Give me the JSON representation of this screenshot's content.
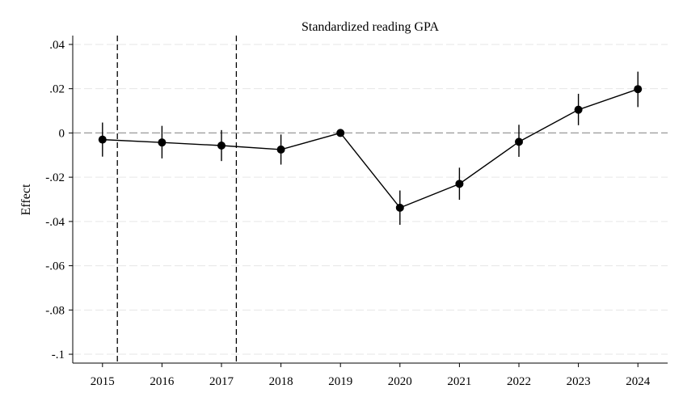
{
  "chart_data": {
    "type": "line",
    "title": "Standardized reading GPA",
    "xlabel": "",
    "ylabel": "Effect",
    "x": [
      2015,
      2016,
      2017,
      2018,
      2019,
      2020,
      2021,
      2022,
      2023,
      2024
    ],
    "x_tick_labels": [
      "2015",
      "2016",
      "2017",
      "2018",
      "2019",
      "2020",
      "2021",
      "2022",
      "2023",
      "2024"
    ],
    "y_ticks": [
      0.04,
      0.02,
      0,
      -0.02,
      -0.04,
      -0.06,
      -0.08,
      -0.1
    ],
    "y_tick_labels": [
      ".04",
      ".02",
      "0",
      "-.02",
      "-.04",
      "-.06",
      "-.08",
      "-.1"
    ],
    "xlim": [
      2014.5,
      2024.5
    ],
    "ylim": [
      -0.104,
      0.044
    ],
    "series": [
      {
        "values": [
          -0.003,
          -0.0043,
          -0.0057,
          -0.0075,
          0,
          -0.0338,
          -0.023,
          -0.004,
          0.0105,
          0.0198
        ],
        "ci_low": [
          -0.0107,
          -0.0115,
          -0.0127,
          -0.0143,
          0,
          -0.0415,
          -0.0302,
          -0.0108,
          0.0035,
          0.0117
        ],
        "ci_high": [
          0.0047,
          0.0032,
          0.0013,
          -0.0007,
          0,
          -0.026,
          -0.0157,
          0.0037,
          0.0177,
          0.0277
        ]
      }
    ],
    "reference_lines": {
      "horizontal_y": 0,
      "vertical_x": [
        2015.25,
        2017.25
      ]
    },
    "grid": true,
    "legend": "none",
    "colors": {
      "line": "#000000",
      "marker": "#000000",
      "grid": "#e6e6e6",
      "zero_line": "#999999",
      "vertical_lines": "#000000"
    }
  }
}
